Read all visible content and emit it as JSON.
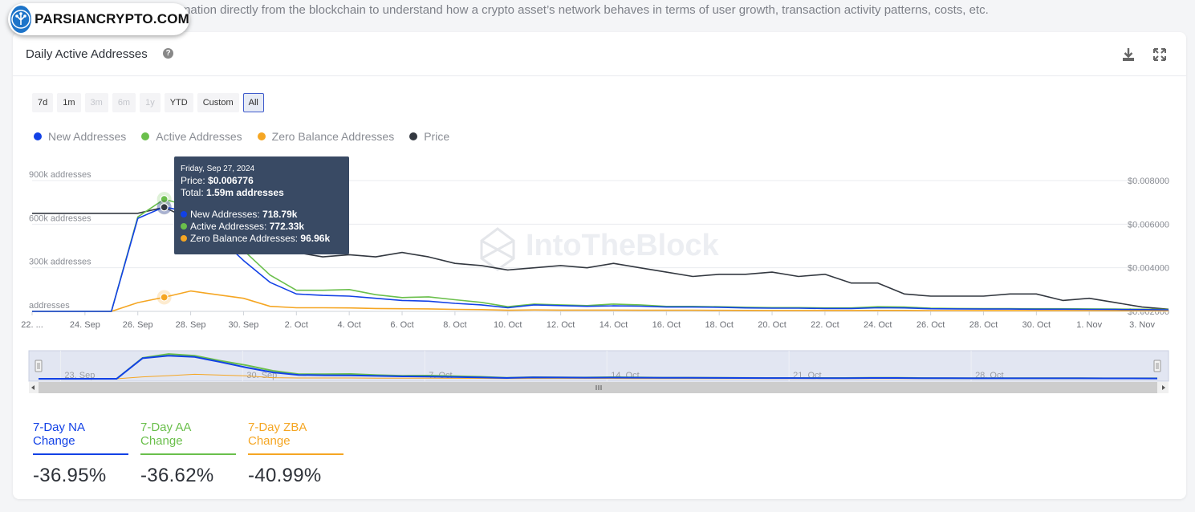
{
  "page": {
    "intro_text": "work Indicators process information directly from the blockchain to understand how a crypto asset’s network behaves in terms of user growth, transaction activity patterns, costs, etc.",
    "brand": "PARSIANCRYPTO.COM",
    "watermark": "IntoTheBlock"
  },
  "card": {
    "title": "Daily Active Addresses",
    "help_icon": "question-circle-icon",
    "download_icon": "download-icon",
    "fullscreen_icon": "expand-icon"
  },
  "range_buttons": [
    {
      "label": "7d",
      "state": "enabled"
    },
    {
      "label": "1m",
      "state": "enabled"
    },
    {
      "label": "3m",
      "state": "disabled"
    },
    {
      "label": "6m",
      "state": "disabled"
    },
    {
      "label": "1y",
      "state": "disabled"
    },
    {
      "label": "YTD",
      "state": "enabled"
    },
    {
      "label": "Custom",
      "state": "enabled"
    },
    {
      "label": "All",
      "state": "selected"
    }
  ],
  "tooltip": {
    "date": "Friday, Sep 27, 2024",
    "price_label": "Price:",
    "price_value": "$0.006776",
    "total_label": "Total:",
    "total_value": "1.59m addresses",
    "rows": [
      {
        "label": "New Addresses:",
        "value": "718.79k",
        "color": "#1241e6"
      },
      {
        "label": "Active Addresses:",
        "value": "772.33k",
        "color": "#6abf4b"
      },
      {
        "label": "Zero Balance Addresses:",
        "value": "96.96k",
        "color": "#f5a623"
      }
    ]
  },
  "stats": [
    {
      "label": "7-Day NA Change",
      "value": "-36.95%",
      "color": "#1241e6"
    },
    {
      "label": "7-Day AA Change",
      "value": "-36.62%",
      "color": "#6abf4b"
    },
    {
      "label": "7-Day ZBA Change",
      "value": "-40.99%",
      "color": "#f5a623"
    }
  ],
  "colors": {
    "new": "#1241e6",
    "active": "#6abf4b",
    "zero": "#f5a623",
    "price": "#333840",
    "navigator_bg": "#d6dcec"
  },
  "chart_data": {
    "type": "line",
    "title": "Daily Active Addresses",
    "x_start_day": 0,
    "x_end_day": 43,
    "x_ticks": [
      {
        "day": 0,
        "label": "22. ..."
      },
      {
        "day": 2,
        "label": "24. Sep"
      },
      {
        "day": 4,
        "label": "26. Sep"
      },
      {
        "day": 6,
        "label": "28. Sep"
      },
      {
        "day": 8,
        "label": "30. Sep"
      },
      {
        "day": 10,
        "label": "2. Oct"
      },
      {
        "day": 12,
        "label": "4. Oct"
      },
      {
        "day": 14,
        "label": "6. Oct"
      },
      {
        "day": 16,
        "label": "8. Oct"
      },
      {
        "day": 18,
        "label": "10. Oct"
      },
      {
        "day": 20,
        "label": "12. Oct"
      },
      {
        "day": 22,
        "label": "14. Oct"
      },
      {
        "day": 24,
        "label": "16. Oct"
      },
      {
        "day": 26,
        "label": "18. Oct"
      },
      {
        "day": 28,
        "label": "20. Oct"
      },
      {
        "day": 30,
        "label": "22. Oct"
      },
      {
        "day": 32,
        "label": "24. Oct"
      },
      {
        "day": 34,
        "label": "26. Oct"
      },
      {
        "day": 36,
        "label": "28. Oct"
      },
      {
        "day": 38,
        "label": "30. Oct"
      },
      {
        "day": 40,
        "label": "1. Nov"
      },
      {
        "day": 42,
        "label": "3. Nov"
      }
    ],
    "y_left": {
      "min": 0,
      "max": 900000,
      "ticks": [
        {
          "value": 900000,
          "label": "900k addresses"
        },
        {
          "value": 600000,
          "label": "600k addresses"
        },
        {
          "value": 300000,
          "label": "300k addresses"
        },
        {
          "value": 0,
          "label": "addresses"
        }
      ]
    },
    "y_right": {
      "min": 0.002,
      "max": 0.008,
      "ticks": [
        {
          "value": 0.008,
          "label": "$0.008000"
        },
        {
          "value": 0.006,
          "label": "$0.006000"
        },
        {
          "value": 0.004,
          "label": "$0.004000"
        },
        {
          "value": 0.002,
          "label": "$0.002000"
        }
      ]
    },
    "highlight_day": 5,
    "series": [
      {
        "name": "New Addresses",
        "key": "new",
        "axis": "left",
        "x": [
          0,
          1,
          2,
          3,
          4,
          5,
          6,
          7,
          8,
          9,
          10,
          11,
          12,
          13,
          14,
          15,
          16,
          17,
          18,
          19,
          20,
          21,
          22,
          23,
          24,
          25,
          26,
          27,
          28,
          29,
          30,
          31,
          32,
          33,
          34,
          35,
          36,
          37,
          38,
          39,
          40,
          41,
          42,
          43
        ],
        "values": [
          0,
          0,
          0,
          0,
          640000,
          718790,
          680000,
          520000,
          350000,
          200000,
          120000,
          110000,
          105000,
          90000,
          75000,
          70000,
          55000,
          45000,
          25000,
          45000,
          40000,
          35000,
          38000,
          36000,
          30000,
          30000,
          28000,
          24000,
          22000,
          22000,
          20000,
          20000,
          25000,
          24000,
          18000,
          17000,
          16000,
          16000,
          15000,
          15000,
          14000,
          13000,
          12000,
          11000
        ]
      },
      {
        "name": "Active Addresses",
        "key": "active",
        "axis": "left",
        "x": [
          0,
          1,
          2,
          3,
          4,
          5,
          6,
          7,
          8,
          9,
          10,
          11,
          12,
          13,
          14,
          15,
          16,
          17,
          18,
          19,
          20,
          21,
          22,
          23,
          24,
          25,
          26,
          27,
          28,
          29,
          30,
          31,
          32,
          33,
          34,
          35,
          36,
          37,
          38,
          39,
          40,
          41,
          42,
          43
        ],
        "values": [
          0,
          0,
          0,
          0,
          650000,
          772330,
          720000,
          560000,
          420000,
          250000,
          145000,
          145000,
          150000,
          115000,
          95000,
          100000,
          80000,
          62000,
          32000,
          50000,
          45000,
          40000,
          50000,
          45000,
          34000,
          34000,
          32000,
          28000,
          26000,
          26000,
          24000,
          24000,
          32000,
          30000,
          22000,
          20000,
          19000,
          19000,
          18000,
          18000,
          17000,
          16000,
          15000,
          14000
        ]
      },
      {
        "name": "Zero Balance Addresses",
        "key": "zero",
        "axis": "left",
        "x": [
          0,
          1,
          2,
          3,
          4,
          5,
          6,
          7,
          8,
          9,
          10,
          11,
          12,
          13,
          14,
          15,
          16,
          17,
          18,
          19,
          20,
          21,
          22,
          23,
          24,
          25,
          26,
          27,
          28,
          29,
          30,
          31,
          32,
          33,
          34,
          35,
          36,
          37,
          38,
          39,
          40,
          41,
          42,
          43
        ],
        "values": [
          0,
          0,
          0,
          0,
          60000,
          96960,
          140000,
          115000,
          90000,
          35000,
          25000,
          25000,
          24000,
          20000,
          18000,
          17000,
          14000,
          12000,
          8000,
          10000,
          9000,
          9000,
          9000,
          8000,
          7500,
          7500,
          7000,
          6500,
          6000,
          6000,
          6000,
          6000,
          6500,
          6500,
          5500,
          5500,
          5200,
          5200,
          5000,
          5000,
          4800,
          4600,
          4400,
          4200
        ]
      },
      {
        "name": "Price",
        "key": "price",
        "axis": "right",
        "x": [
          0,
          1,
          2,
          3,
          4,
          5,
          6,
          7,
          8,
          9,
          10,
          11,
          12,
          13,
          14,
          15,
          16,
          17,
          18,
          19,
          20,
          21,
          22,
          23,
          24,
          25,
          26,
          27,
          28,
          29,
          30,
          31,
          32,
          33,
          34,
          35,
          36,
          37,
          38,
          39,
          40,
          41,
          42,
          43
        ],
        "values": [
          0.0065,
          0.0065,
          0.0065,
          0.0065,
          0.0065,
          0.006776,
          0.0062,
          0.0056,
          0.0054,
          0.0047,
          0.0047,
          0.0045,
          0.0046,
          0.0045,
          0.0047,
          0.0045,
          0.0042,
          0.0041,
          0.0039,
          0.004,
          0.0041,
          0.004,
          0.0042,
          0.004,
          0.0038,
          0.0036,
          0.0037,
          0.0037,
          0.0038,
          0.0036,
          0.0037,
          0.0033,
          0.0033,
          0.0028,
          0.0027,
          0.0027,
          0.0027,
          0.0028,
          0.0028,
          0.0025,
          0.0026,
          0.0024,
          0.0022,
          0.0021
        ]
      }
    ],
    "navigator": {
      "labels": [
        {
          "day": 1,
          "label": "23. Sep"
        },
        {
          "day": 8,
          "label": "30. Sep"
        },
        {
          "day": 15,
          "label": "7. Oct"
        },
        {
          "day": 22,
          "label": "14. Oct"
        },
        {
          "day": 29,
          "label": "21. Oct"
        },
        {
          "day": 36,
          "label": "28. Oct"
        }
      ]
    }
  }
}
